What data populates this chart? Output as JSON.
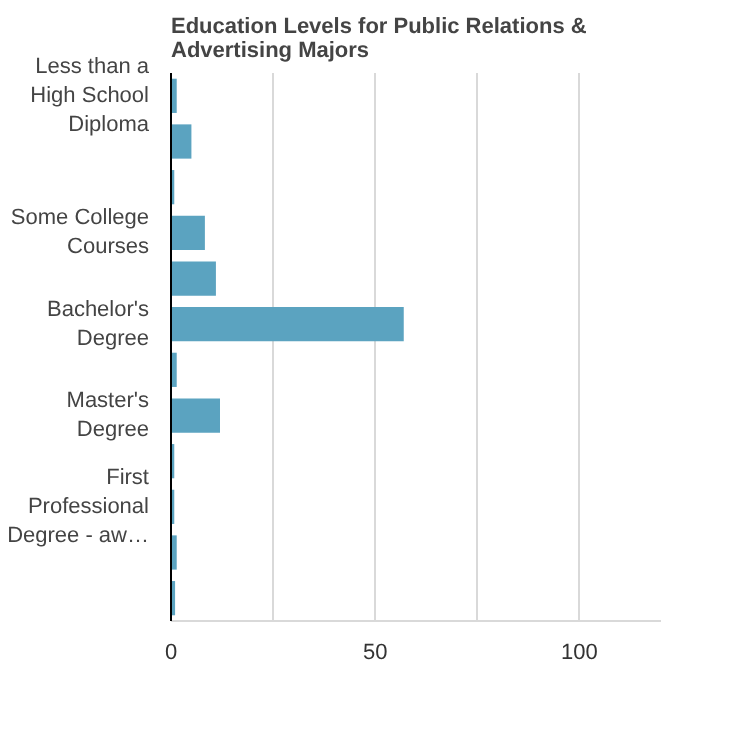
{
  "chart_data": {
    "type": "bar",
    "orientation": "horizontal",
    "title": "Education Levels for Public Relations & Advertising Majors",
    "categories": [
      "Less than a High School Diploma",
      null,
      null,
      "Some College Courses",
      null,
      "Bachelor's Degree",
      null,
      "Master's Degree",
      null,
      "First Professional Degree - aw…",
      null,
      null
    ],
    "values": [
      1.4,
      5,
      0.8,
      8.3,
      11,
      57,
      1.4,
      12,
      0.8,
      0.8,
      1.4,
      1
    ],
    "color": "#5ba3c0",
    "xlim": [
      0,
      120
    ],
    "xticks": [
      0,
      {
        "value": 25,
        "label": null
      },
      50,
      {
        "value": 75,
        "label": null
      },
      100
    ],
    "grid": "x"
  }
}
